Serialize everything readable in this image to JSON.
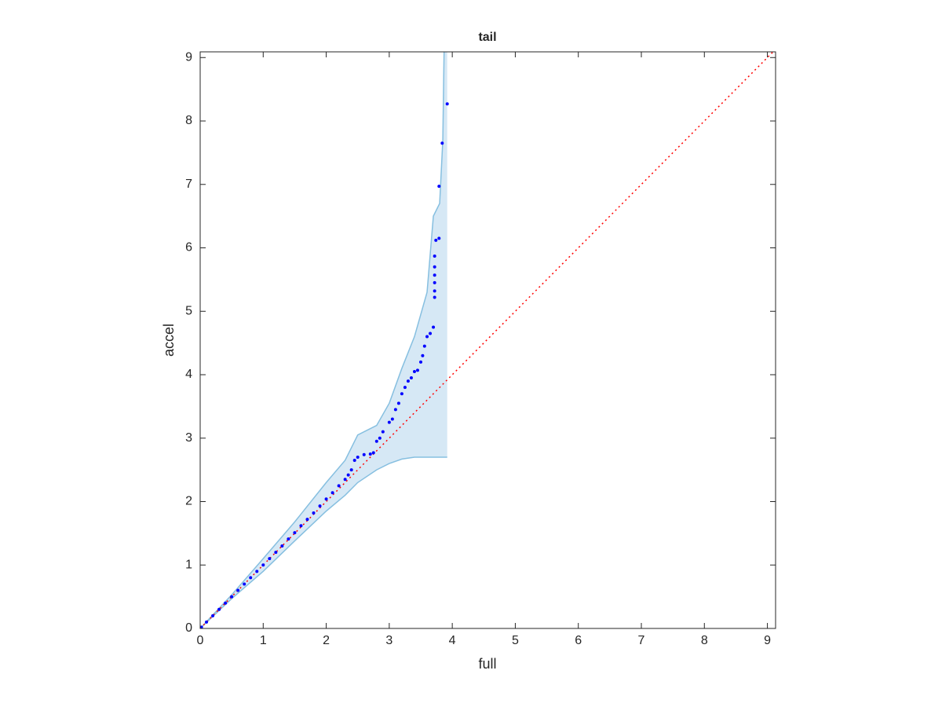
{
  "chart_data": {
    "type": "scatter",
    "title": "tail",
    "xlabel": "full",
    "ylabel": "accel",
    "xlim": [
      0,
      9.13
    ],
    "ylim": [
      0,
      9.09
    ],
    "xticks": [
      0,
      1,
      2,
      3,
      4,
      5,
      6,
      7,
      8,
      9
    ],
    "yticks": [
      0,
      1,
      2,
      3,
      4,
      5,
      6,
      7,
      8,
      9
    ],
    "grid": false,
    "series": [
      {
        "color": "#0000ff",
        "x": [
          0.02,
          0.1,
          0.2,
          0.3,
          0.4,
          0.5,
          0.6,
          0.7,
          0.8,
          0.9,
          1.0,
          1.1,
          1.2,
          1.3,
          1.4,
          1.5,
          1.6,
          1.7,
          1.8,
          1.9,
          2.0,
          2.1,
          2.2,
          2.3,
          2.35,
          2.4,
          2.45,
          2.5,
          2.6,
          2.7,
          2.75,
          2.8,
          2.85,
          2.9,
          3.0,
          3.05,
          3.1,
          3.15,
          3.2,
          3.25,
          3.3,
          3.35,
          3.4,
          3.45,
          3.5,
          3.53,
          3.56,
          3.6,
          3.65,
          3.7,
          3.72,
          3.72,
          3.72,
          3.72,
          3.72,
          3.72,
          3.74,
          3.79,
          3.79,
          3.84,
          3.92
        ],
        "values": [
          0.02,
          0.1,
          0.2,
          0.3,
          0.4,
          0.5,
          0.6,
          0.7,
          0.8,
          0.9,
          1.0,
          1.1,
          1.2,
          1.3,
          1.41,
          1.51,
          1.62,
          1.72,
          1.82,
          1.93,
          2.04,
          2.14,
          2.25,
          2.35,
          2.42,
          2.5,
          2.65,
          2.7,
          2.74,
          2.75,
          2.77,
          2.95,
          3.0,
          3.1,
          3.25,
          3.3,
          3.45,
          3.55,
          3.7,
          3.8,
          3.9,
          3.95,
          4.05,
          4.07,
          4.2,
          4.3,
          4.45,
          4.6,
          4.65,
          4.75,
          5.22,
          5.32,
          5.45,
          5.57,
          5.7,
          5.87,
          6.12,
          6.15,
          6.97,
          7.65,
          8.27
        ]
      }
    ],
    "band": {
      "fill": "#d6e8f5",
      "edge": "#86bfe0",
      "x": [
        0,
        0.5,
        1,
        1.5,
        2,
        2.3,
        2.5,
        2.8,
        3,
        3.2,
        3.4,
        3.6,
        3.7,
        3.8,
        3.85,
        3.87,
        3.92
      ],
      "upper": [
        0,
        0.53,
        1.1,
        1.68,
        2.3,
        2.65,
        3.05,
        3.2,
        3.55,
        4.1,
        4.6,
        5.3,
        6.5,
        6.7,
        7.7,
        9.1,
        9.1
      ],
      "lower": [
        0,
        0.47,
        0.9,
        1.38,
        1.85,
        2.1,
        2.3,
        2.5,
        2.6,
        2.67,
        2.7,
        2.7,
        2.7,
        2.7,
        2.7,
        2.7,
        2.7
      ]
    },
    "reference_line": {
      "color": "#ff0000",
      "x": [
        0,
        9.13
      ],
      "y": [
        0,
        9.13
      ]
    }
  }
}
